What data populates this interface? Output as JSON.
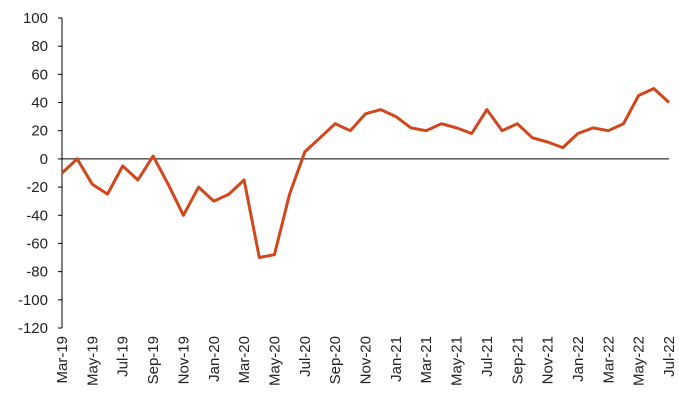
{
  "chart_data": {
    "type": "line",
    "title": "",
    "xlabel": "",
    "ylabel": "",
    "ylim": [
      -120,
      100
    ],
    "y_ticks": [
      100,
      80,
      60,
      40,
      20,
      0,
      -20,
      -40,
      -60,
      -80,
      -100,
      -120
    ],
    "x_tick_labels": [
      "Mar-19",
      "May-19",
      "Jul-19",
      "Sep-19",
      "Nov-19",
      "Jan-20",
      "Mar-20",
      "May-20",
      "Jul-20",
      "Sep-20",
      "Nov-20",
      "Jan-21",
      "Mar-21",
      "May-21",
      "Jul-21",
      "Sep-21",
      "Nov-21",
      "Jan-22",
      "Mar-22",
      "May-22",
      "Jul-22"
    ],
    "grid": false,
    "zero_line": true,
    "legend": "none",
    "colors": {
      "line": "#D2461C",
      "axis": "#000000",
      "text": "#222222"
    },
    "series": [
      {
        "x": [
          "2019-03",
          "2019-04",
          "2019-05",
          "2019-06",
          "2019-07",
          "2019-08",
          "2019-09",
          "2019-10",
          "2019-11",
          "2019-12",
          "2020-01",
          "2020-02",
          "2020-03",
          "2020-04",
          "2020-05",
          "2020-06",
          "2020-07",
          "2020-08",
          "2020-09",
          "2020-10",
          "2020-11",
          "2020-12",
          "2021-01",
          "2021-02",
          "2021-03",
          "2021-04",
          "2021-05",
          "2021-06",
          "2021-07",
          "2021-08",
          "2021-09",
          "2021-10",
          "2021-11",
          "2021-12",
          "2022-01",
          "2022-02",
          "2022-03",
          "2022-04",
          "2022-05",
          "2022-06",
          "2022-07"
        ],
        "y": [
          -10,
          0,
          -18,
          -25,
          -5,
          -15,
          2,
          -18,
          -40,
          -20,
          -30,
          -25,
          -15,
          -70,
          -68,
          -25,
          5,
          15,
          25,
          20,
          32,
          35,
          30,
          22,
          20,
          25,
          22,
          18,
          35,
          20,
          25,
          15,
          12,
          8,
          18,
          22,
          20,
          25,
          45,
          50,
          40
        ]
      }
    ]
  }
}
